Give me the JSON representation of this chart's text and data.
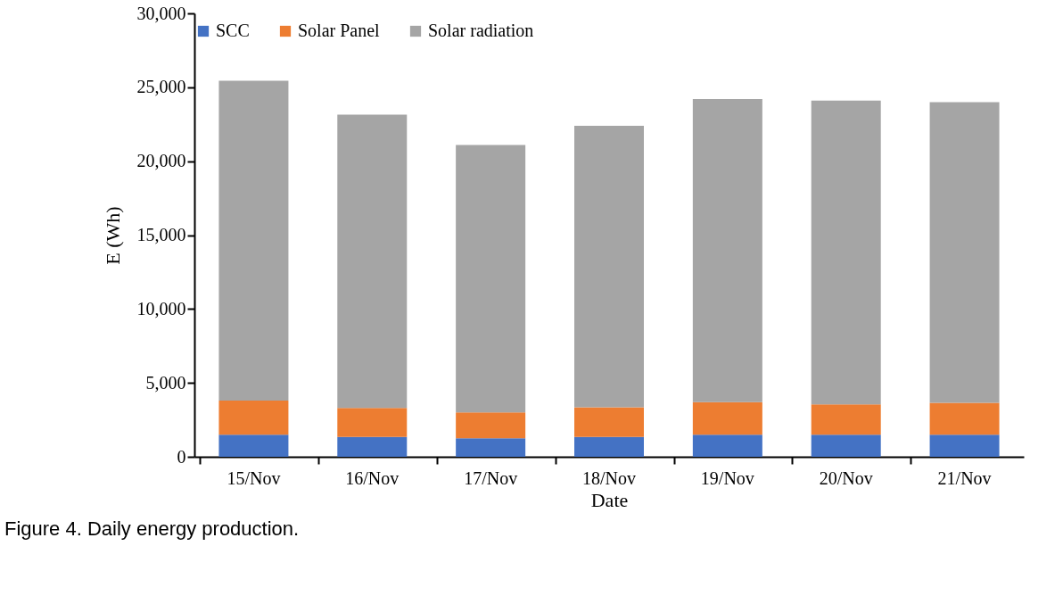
{
  "chart_data": {
    "type": "bar",
    "stacked": true,
    "xlabel": "Date",
    "ylabel": "E (Wh)",
    "categories": [
      "15/Nov",
      "16/Nov",
      "17/Nov",
      "18/Nov",
      "19/Nov",
      "20/Nov",
      "21/Nov"
    ],
    "series": [
      {
        "name": "SCC",
        "color": "#4472c4",
        "values": [
          1500,
          1350,
          1250,
          1350,
          1500,
          1500,
          1500
        ]
      },
      {
        "name": "Solar Panel",
        "color": "#ed7d31",
        "values": [
          2300,
          1950,
          1750,
          2000,
          2200,
          2050,
          2150
        ]
      },
      {
        "name": "Solar radiation",
        "color": "#a5a5a5",
        "values": [
          21650,
          19850,
          18100,
          19050,
          20500,
          20550,
          20350
        ]
      }
    ],
    "ylim": [
      0,
      30000
    ],
    "yticks": [
      0,
      {
        "value": 5000,
        "label": "5,000"
      },
      {
        "value": 10000,
        "label": "10,000"
      },
      {
        "value": 15000,
        "label": "15,000"
      },
      {
        "value": 20000,
        "label": "20,000"
      },
      {
        "value": 25000,
        "label": "25,000"
      },
      {
        "value": 30000,
        "label": "30,000"
      }
    ],
    "grid": false,
    "legend": "top",
    "annotations": [
      "Figure 4. Daily energy production."
    ]
  }
}
